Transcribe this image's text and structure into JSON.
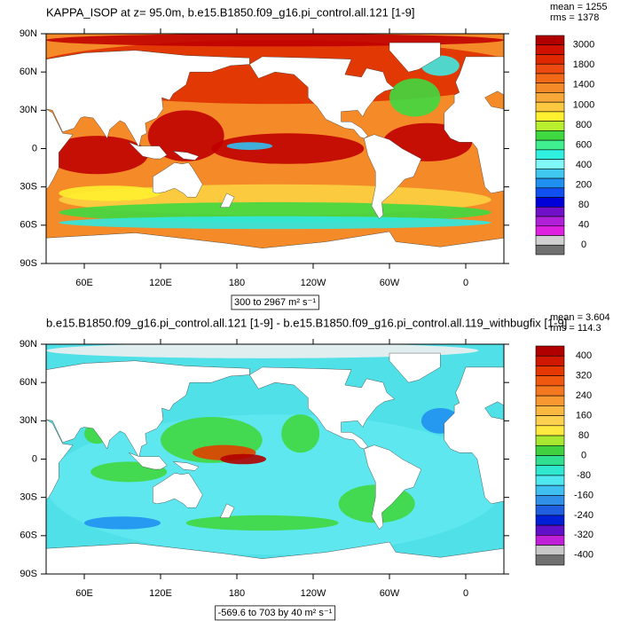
{
  "panels": [
    {
      "title": "KAPPA_ISOP at z=  95.0m, b.e15.B1850.f09_g16.pi_control.all.121 [1-9]",
      "mean": "mean = 1255",
      "rms": "rms = 1378",
      "caption": "300 to 2967 m² s⁻¹",
      "colorbar_labels": [
        3000,
        1800,
        1400,
        1000,
        800,
        600,
        400,
        200,
        80,
        40,
        0
      ],
      "colorbar_colors": [
        "#b00000",
        "#d01000",
        "#e02800",
        "#ec4a10",
        "#f26a18",
        "#f58a28",
        "#f8a838",
        "#fcc840",
        "#fff030",
        "#b8f030",
        "#40d840",
        "#40f090",
        "#30f0e0",
        "#80f8f8",
        "#40c8f0",
        "#2090f0",
        "#1050f0",
        "#0000d8",
        "#7010c8",
        "#b020d8",
        "#e020e0",
        "#d0d0d0",
        "#707070"
      ]
    },
    {
      "title": "b.e15.B1850.f09_g16.pi_control.all.121 [1-9] - b.e15.B1850.f09_g16.pi_control.all.119_withbugfix [1-9]",
      "mean": "mean = 3.604",
      "rms": "rms = 114.3",
      "caption": "-569.6 to 703 by 40 m² s⁻¹",
      "colorbar_labels": [
        400,
        320,
        240,
        160,
        80,
        0,
        -80,
        -160,
        -240,
        -320,
        -400
      ],
      "colorbar_colors": [
        "#b00000",
        "#d01800",
        "#e43800",
        "#f05810",
        "#f47820",
        "#f89830",
        "#fbb840",
        "#fdd050",
        "#ffe840",
        "#a8e830",
        "#40d040",
        "#30e090",
        "#30e8d0",
        "#50e8f0",
        "#40c0f0",
        "#3090e8",
        "#2060e0",
        "#0020d8",
        "#6010c8",
        "#c020d8",
        "#c8c8c8",
        "#707070"
      ]
    }
  ],
  "map": {
    "xlim": [
      30,
      390
    ],
    "ylim": [
      -90,
      90
    ],
    "xticks": [
      {
        "value": 60,
        "label": "60E"
      },
      {
        "value": 120,
        "label": "120E"
      },
      180,
      {
        "value": 240,
        "label": "120W"
      },
      {
        "value": 300,
        "label": "60W"
      },
      {
        "value": 360,
        "label": "0"
      }
    ],
    "yticks": [
      {
        "value": 90,
        "label": "90N"
      },
      {
        "value": 60,
        "label": "60N"
      },
      {
        "value": 30,
        "label": "30N"
      },
      0,
      {
        "value": -30,
        "label": "30S"
      },
      {
        "value": -60,
        "label": "60S"
      },
      {
        "value": -90,
        "label": "90S"
      }
    ]
  }
}
